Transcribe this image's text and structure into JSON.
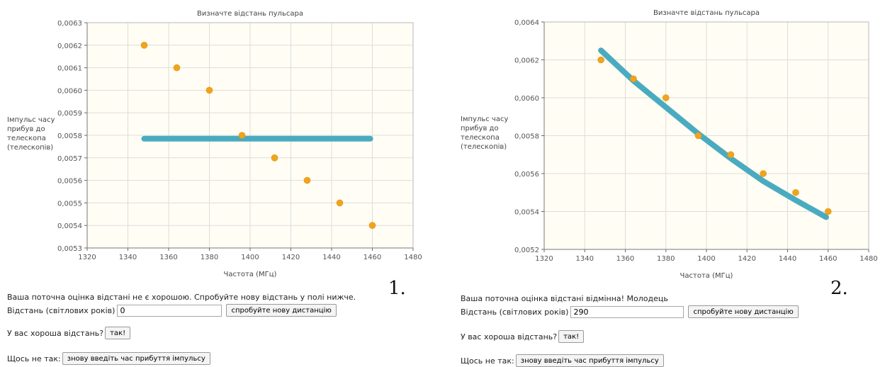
{
  "panels": [
    {
      "chart_data": {
        "type": "scatter",
        "title": "Визначте відстань пульсара",
        "xlabel": "Частота (МГц)",
        "ylabel": [
          "Імпульс часу",
          "прибув до",
          "телескопа",
          "(телескопів)"
        ],
        "xlim": [
          1320,
          1480
        ],
        "ylim": [
          0.0053,
          0.0063
        ],
        "xticks": [
          1320,
          1340,
          1360,
          1380,
          1400,
          1420,
          1440,
          1460,
          1480
        ],
        "yticks": [
          0.0053,
          0.0054,
          0.0055,
          0.0056,
          0.0057,
          0.0058,
          0.0059,
          0.006,
          0.0061,
          0.0062,
          0.0063
        ],
        "ytick_decimals": 4,
        "xtick_labels": [
          "1320",
          "1340",
          "1360",
          "1380",
          "1400",
          "1420",
          "1440",
          "1460",
          "1480"
        ],
        "ytick_labels": [
          "0,0053",
          "0,0054",
          "0,0055",
          "0,0056",
          "0,0057",
          "0,0058",
          "0,0059",
          "0,0060",
          "0,0061",
          "0,0062",
          "0,0063"
        ],
        "points": {
          "x": [
            1348,
            1364,
            1380,
            1396,
            1412,
            1428,
            1444,
            1460
          ],
          "y": [
            0.0062,
            0.0061,
            0.006,
            0.0058,
            0.0057,
            0.0056,
            0.0055,
            0.0054
          ]
        },
        "fit_line": {
          "x": [
            1348,
            1459
          ],
          "y": [
            0.005785,
            0.005785
          ]
        },
        "grid": true,
        "colors": {
          "points": "#f0a41e",
          "line": "#4aabc0",
          "plot_bg": "#fffdf4",
          "grid": "#dddddd"
        }
      },
      "status": "Ваша поточна оцінка відстані не є хорошою. Спробуйте нову відстань у полі нижче.",
      "distance_label": "Відстань (світлових років)",
      "distance_value": "0",
      "try_button": "спробуйте нову дистанцію",
      "good_question": "У вас хороша відстань?",
      "yes_button": "так!",
      "wrong_label": "Щось не так:",
      "reenter_button": "знову введіть час прибуття імпульсу",
      "number": "1."
    },
    {
      "chart_data": {
        "type": "scatter",
        "title": "Визначте відстань пульсара",
        "xlabel": "Частота (МГц)",
        "ylabel": [
          "Імпульс часу",
          "прибув до",
          "телескопа",
          "(телескопів)"
        ],
        "xlim": [
          1320,
          1480
        ],
        "ylim": [
          0.0052,
          0.0064
        ],
        "xticks": [
          1320,
          1340,
          1360,
          1380,
          1400,
          1420,
          1440,
          1460,
          1480
        ],
        "yticks": [
          0.0052,
          0.0054,
          0.0056,
          0.0058,
          0.006,
          0.0062,
          0.0064
        ],
        "ytick_decimals": 4,
        "xtick_labels": [
          "1320",
          "1340",
          "1360",
          "1380",
          "1400",
          "1420",
          "1440",
          "1460",
          "1480"
        ],
        "ytick_labels": [
          "0,0052",
          "0,0054",
          "0,0056",
          "0,0058",
          "0,0060",
          "0,0062",
          "0,0064"
        ],
        "points": {
          "x": [
            1348,
            1364,
            1380,
            1396,
            1412,
            1428,
            1444,
            1460
          ],
          "y": [
            0.0062,
            0.0061,
            0.006,
            0.0058,
            0.0057,
            0.0056,
            0.0055,
            0.0054
          ]
        },
        "fit_line": {
          "x": [
            1348,
            1364,
            1380,
            1396,
            1412,
            1428,
            1444,
            1459
          ],
          "y": [
            0.00625,
            0.00609,
            0.00595,
            0.00581,
            0.00568,
            0.00556,
            0.00546,
            0.00537
          ]
        },
        "grid": true,
        "colors": {
          "points": "#f0a41e",
          "line": "#4aabc0",
          "plot_bg": "#fffdf4",
          "grid": "#dddddd"
        }
      },
      "status": "Ваша поточна оцінка відстані відмінна! Молодець",
      "distance_label": "Відстань (світлових років)",
      "distance_value": "290",
      "try_button": "спробуйте нову дистанцію",
      "good_question": "У вас хороша відстань?",
      "yes_button": "так!",
      "wrong_label": "Щось не так:",
      "reenter_button": "знову введіть час прибуття імпульсу",
      "number": "2."
    }
  ]
}
